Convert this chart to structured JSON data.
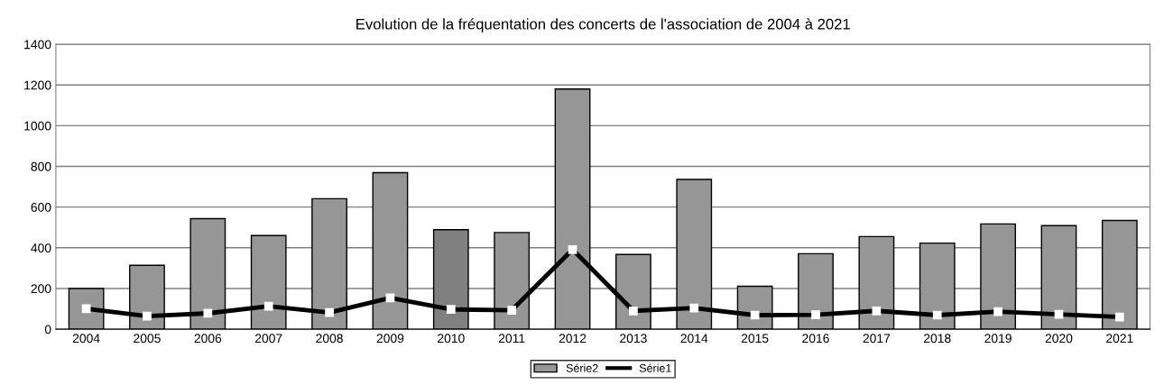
{
  "chart_data": {
    "type": "bar",
    "title": "Evolution de la fréquentation des concerts de l'association de 2004 à 2021",
    "categories": [
      "2004",
      "2005",
      "2006",
      "2007",
      "2008",
      "2009",
      "2010",
      "2011",
      "2012",
      "2013",
      "2014",
      "2015",
      "2016",
      "2017",
      "2018",
      "2019",
      "2020",
      "2021"
    ],
    "series": [
      {
        "name": "Série2",
        "color": "#969696",
        "colors": [
          "#969696",
          "#969696",
          "#969696",
          "#969696",
          "#969696",
          "#969696",
          "#808080",
          "#969696",
          "#969696",
          "#969696",
          "#969696",
          "#969696",
          "#969696",
          "#969696",
          "#969696",
          "#969696",
          "#969696",
          "#969696"
        ],
        "values": [
          200,
          314,
          543,
          460,
          641,
          769,
          489,
          475,
          1180,
          367,
          736,
          211,
          371,
          455,
          423,
          517,
          509,
          534
        ]
      },
      {
        "name": "Série1",
        "type": "line",
        "color": "#000000",
        "marker": "square",
        "values": [
          101,
          64,
          78,
          113,
          82,
          154,
          97,
          93,
          391,
          90,
          104,
          69,
          71,
          90,
          69,
          86,
          73,
          60
        ]
      }
    ],
    "ylim": [
      0,
      1400
    ],
    "yticks": [
      0,
      200,
      400,
      600,
      800,
      1000,
      1200,
      1400
    ],
    "grid": "y",
    "legend": "bottom"
  }
}
